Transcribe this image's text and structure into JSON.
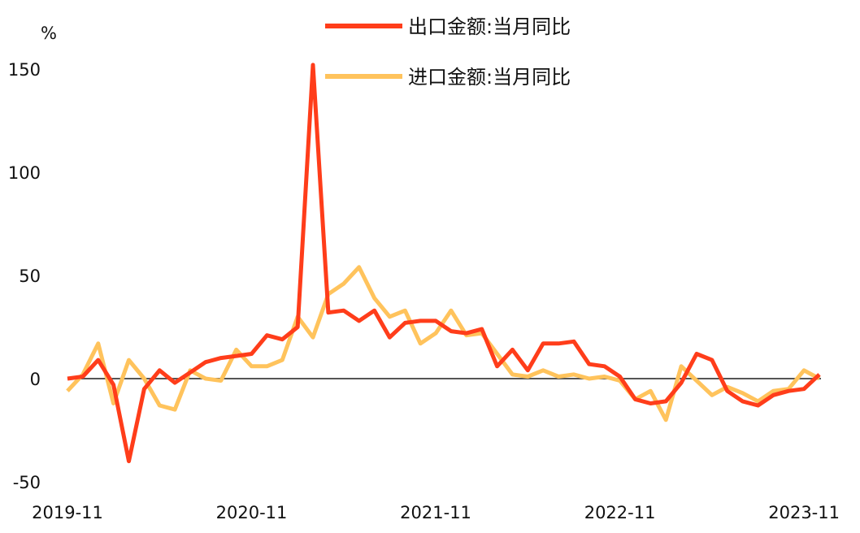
{
  "chart_data": {
    "type": "line",
    "ylabel": "%",
    "ylim": [
      -50,
      150
    ],
    "yticks": [
      150,
      100,
      50,
      0,
      -50
    ],
    "xtick_labels": [
      "2019-11",
      "2020-11",
      "2021-11",
      "2022-11",
      "2023-11"
    ],
    "grid": false,
    "legend_position": "top",
    "x": [
      "2019-11",
      "2019-12",
      "2020-01",
      "2020-02",
      "2020-03",
      "2020-04",
      "2020-05",
      "2020-06",
      "2020-07",
      "2020-08",
      "2020-09",
      "2020-10",
      "2020-11",
      "2020-12",
      "2021-01",
      "2021-02",
      "2021-03",
      "2021-04",
      "2021-05",
      "2021-06",
      "2021-07",
      "2021-08",
      "2021-09",
      "2021-10",
      "2021-11",
      "2021-12",
      "2022-01",
      "2022-02",
      "2022-03",
      "2022-04",
      "2022-05",
      "2022-06",
      "2022-07",
      "2022-08",
      "2022-09",
      "2022-10",
      "2022-11",
      "2022-12",
      "2023-01",
      "2023-02",
      "2023-03",
      "2023-04",
      "2023-05",
      "2023-06",
      "2023-07",
      "2023-08",
      "2023-09",
      "2023-10",
      "2023-11",
      "2023-12"
    ],
    "series": [
      {
        "name": "出口金额:当月同比",
        "color": "#FF3D1A",
        "values": [
          0,
          1,
          9,
          -3,
          -40,
          -5,
          4,
          -2,
          3,
          8,
          10,
          11,
          12,
          21,
          19,
          25,
          152,
          32,
          33,
          28,
          33,
          20,
          27,
          28,
          28,
          23,
          22,
          24,
          6,
          14,
          4,
          17,
          17,
          18,
          7,
          6,
          1,
          -10,
          -12,
          -11,
          -2,
          12,
          9,
          -6,
          -11,
          -13,
          -8,
          -6,
          -5,
          2
        ]
      },
      {
        "name": "进口金额:当月同比",
        "color": "#FFC35C",
        "values": [
          -6,
          2,
          17,
          -12,
          9,
          0,
          -13,
          -15,
          4,
          0,
          -1,
          14,
          6,
          6,
          9,
          30,
          20,
          41,
          46,
          54,
          39,
          30,
          33,
          17,
          22,
          33,
          21,
          22,
          12,
          2,
          1,
          4,
          1,
          2,
          0,
          1,
          -1,
          -10,
          -6,
          -20,
          6,
          -1,
          -8,
          -4,
          -7,
          -11,
          -6,
          -5,
          4,
          0
        ]
      }
    ]
  }
}
